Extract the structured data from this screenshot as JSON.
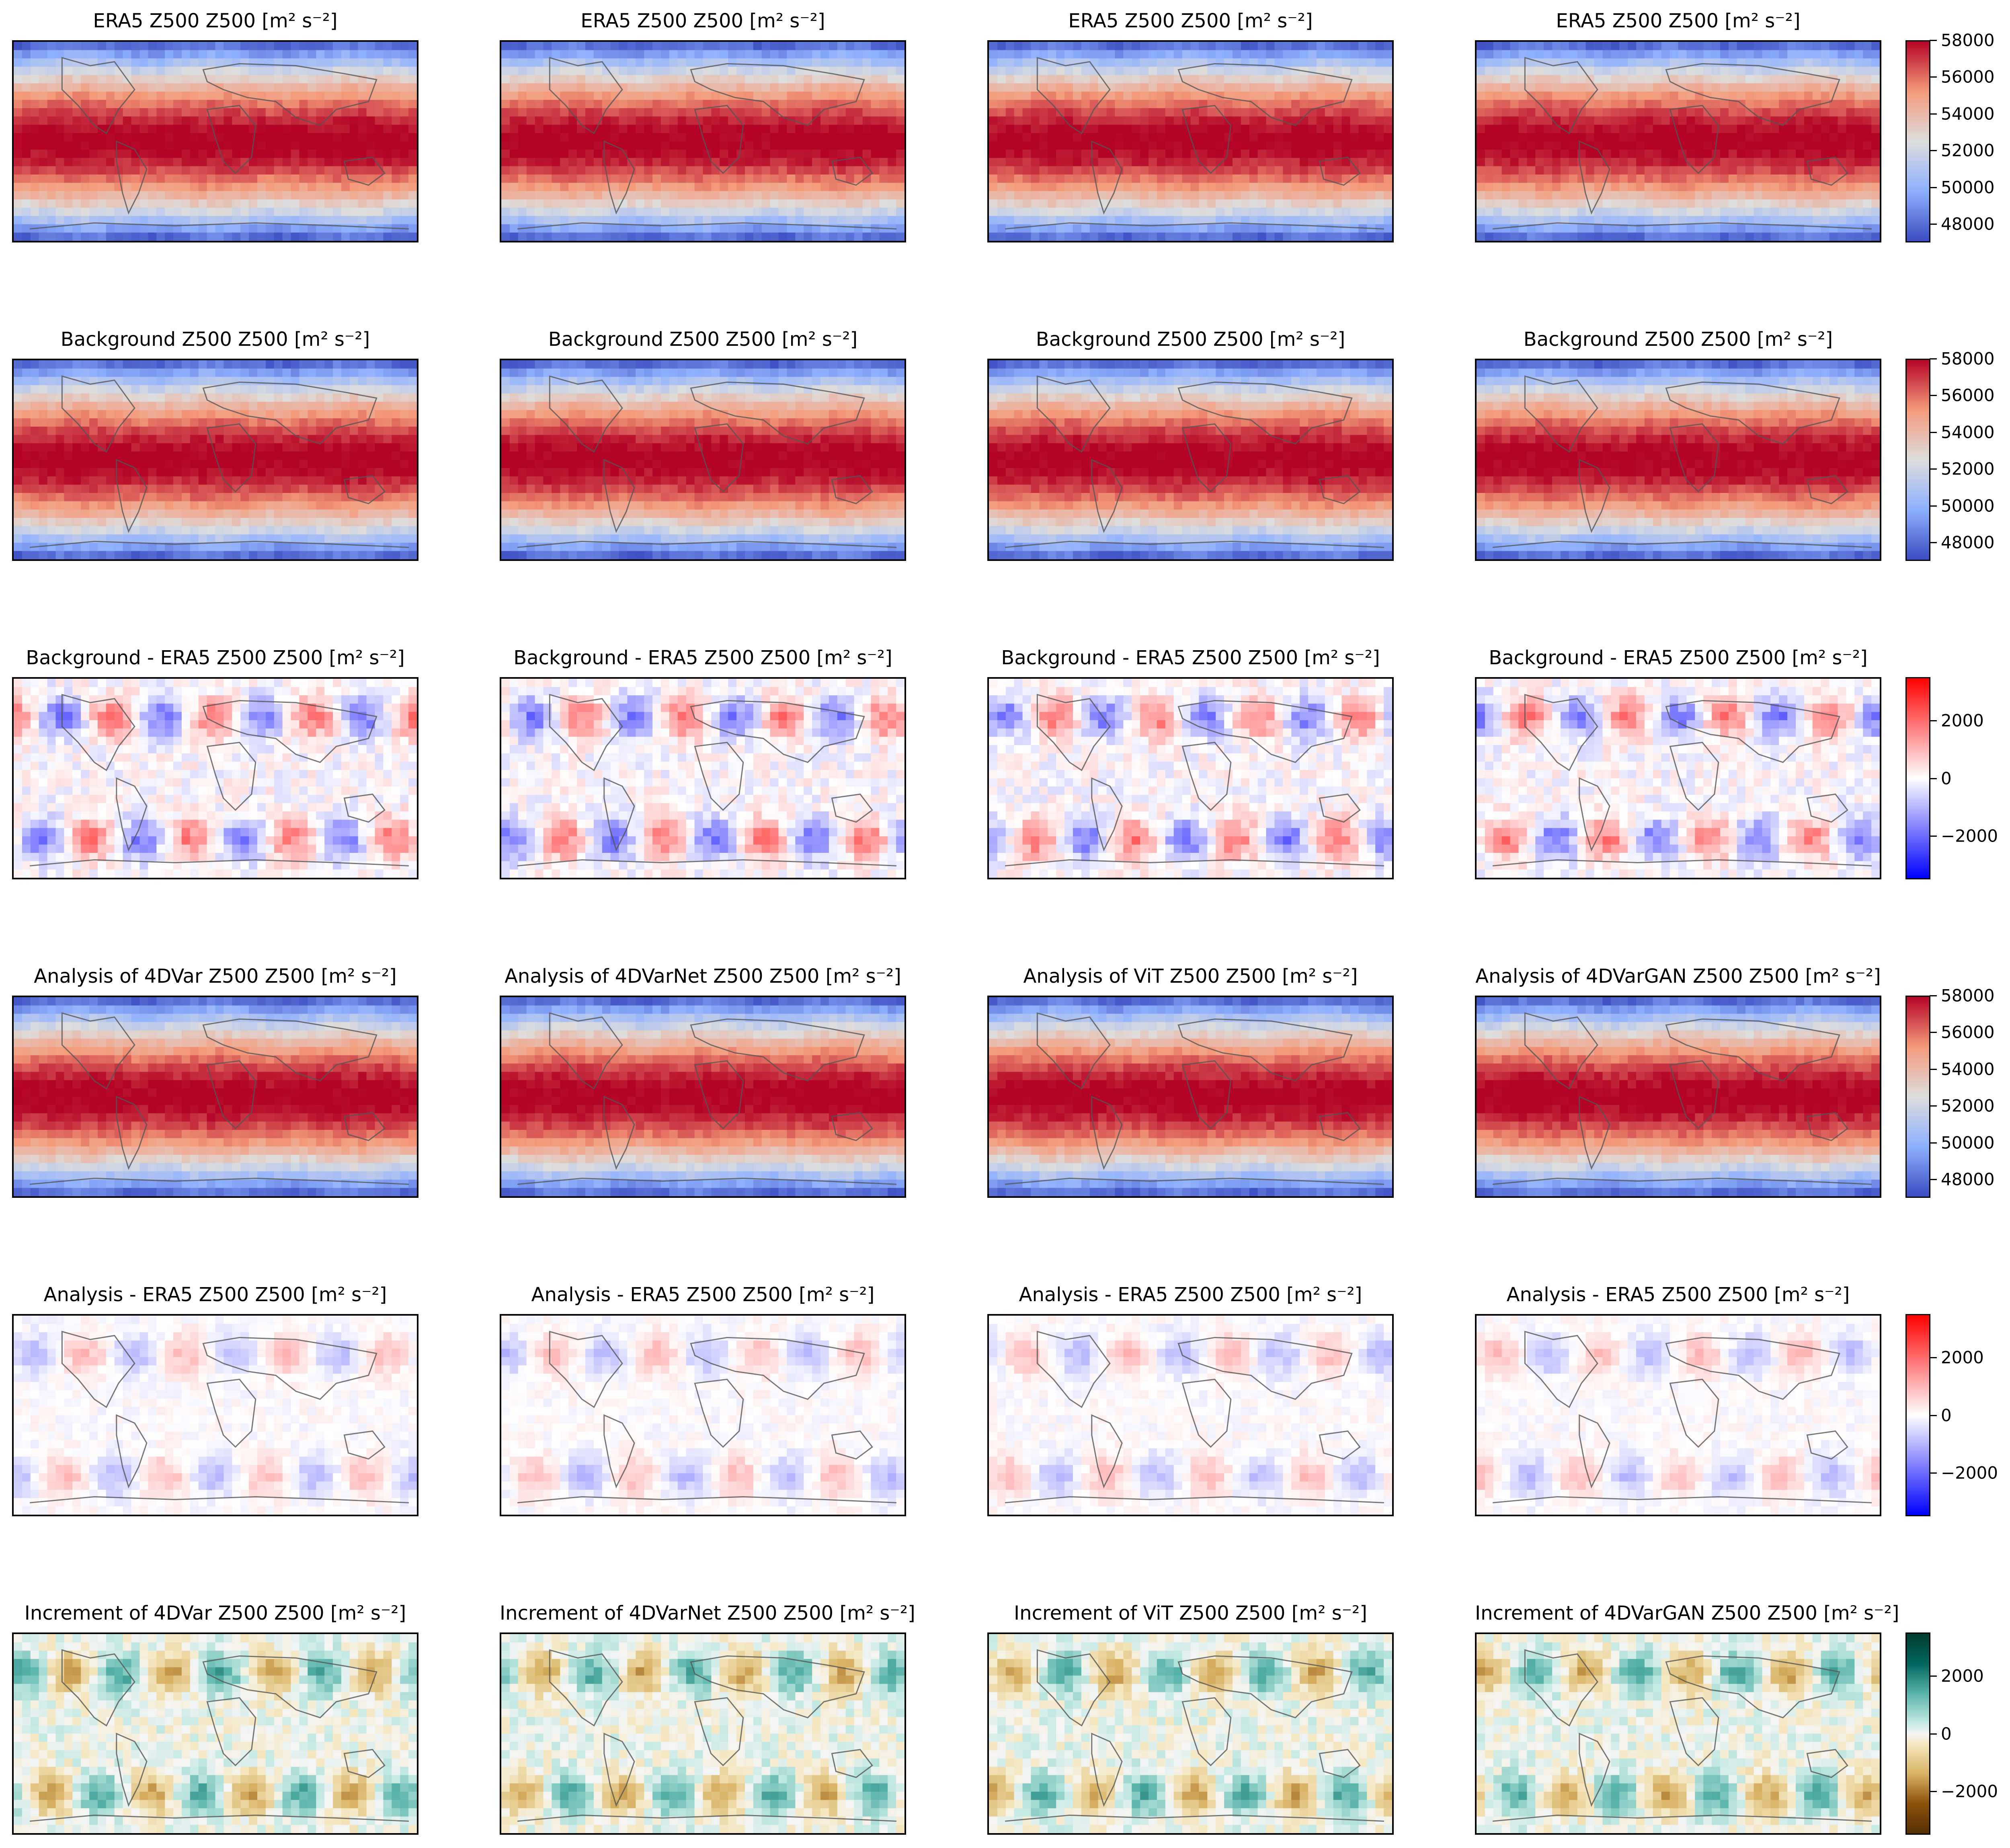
{
  "colors": {
    "abs": "coolwarm",
    "diff": "bwr",
    "increment": "BrBG"
  },
  "chart_data": [
    {
      "type": "heatmap",
      "row": 0,
      "col": 0,
      "title": "ERA5 Z500 Z500 [m² s⁻²]",
      "field": "absolute",
      "vmin": 47000,
      "vmax": 58000
    },
    {
      "type": "heatmap",
      "row": 0,
      "col": 1,
      "title": "ERA5 Z500 Z500 [m² s⁻²]",
      "field": "absolute",
      "vmin": 47000,
      "vmax": 58000
    },
    {
      "type": "heatmap",
      "row": 0,
      "col": 2,
      "title": "ERA5 Z500 Z500 [m² s⁻²]",
      "field": "absolute",
      "vmin": 47000,
      "vmax": 58000
    },
    {
      "type": "heatmap",
      "row": 0,
      "col": 3,
      "title": "ERA5 Z500 Z500 [m² s⁻²]",
      "field": "absolute",
      "vmin": 47000,
      "vmax": 58000
    },
    {
      "type": "heatmap",
      "row": 1,
      "col": 0,
      "title": "Background Z500 Z500 [m² s⁻²]",
      "field": "absolute",
      "vmin": 47000,
      "vmax": 58000
    },
    {
      "type": "heatmap",
      "row": 1,
      "col": 1,
      "title": "Background Z500 Z500 [m² s⁻²]",
      "field": "absolute",
      "vmin": 47000,
      "vmax": 58000
    },
    {
      "type": "heatmap",
      "row": 1,
      "col": 2,
      "title": "Background Z500 Z500 [m² s⁻²]",
      "field": "absolute",
      "vmin": 47000,
      "vmax": 58000
    },
    {
      "type": "heatmap",
      "row": 1,
      "col": 3,
      "title": "Background Z500 Z500 [m² s⁻²]",
      "field": "absolute",
      "vmin": 47000,
      "vmax": 58000
    },
    {
      "type": "heatmap",
      "row": 2,
      "col": 0,
      "title": "Background - ERA5 Z500 Z500 [m² s⁻²]",
      "field": "difference",
      "vmin": -3500,
      "vmax": 3500
    },
    {
      "type": "heatmap",
      "row": 2,
      "col": 1,
      "title": "Background - ERA5 Z500 Z500 [m² s⁻²]",
      "field": "difference",
      "vmin": -3500,
      "vmax": 3500
    },
    {
      "type": "heatmap",
      "row": 2,
      "col": 2,
      "title": "Background - ERA5 Z500 Z500 [m² s⁻²]",
      "field": "difference",
      "vmin": -3500,
      "vmax": 3500
    },
    {
      "type": "heatmap",
      "row": 2,
      "col": 3,
      "title": "Background - ERA5 Z500 Z500 [m² s⁻²]",
      "field": "difference",
      "vmin": -3500,
      "vmax": 3500
    },
    {
      "type": "heatmap",
      "row": 3,
      "col": 0,
      "title": "Analysis of 4DVar Z500 Z500 [m² s⁻²]",
      "field": "absolute",
      "vmin": 47000,
      "vmax": 58000
    },
    {
      "type": "heatmap",
      "row": 3,
      "col": 1,
      "title": "Analysis of 4DVarNet Z500 Z500 [m² s⁻²]",
      "field": "absolute",
      "vmin": 47000,
      "vmax": 58000
    },
    {
      "type": "heatmap",
      "row": 3,
      "col": 2,
      "title": "Analysis of ViT Z500 Z500 [m² s⁻²]",
      "field": "absolute",
      "vmin": 47000,
      "vmax": 58000
    },
    {
      "type": "heatmap",
      "row": 3,
      "col": 3,
      "title": "Analysis of 4DVarGAN Z500 Z500 [m² s⁻²]",
      "field": "absolute",
      "vmin": 47000,
      "vmax": 58000
    },
    {
      "type": "heatmap",
      "row": 4,
      "col": 0,
      "title": "Analysis - ERA5 Z500 Z500 [m² s⁻²]",
      "field": "difference",
      "vmin": -3500,
      "vmax": 3500
    },
    {
      "type": "heatmap",
      "row": 4,
      "col": 1,
      "title": "Analysis - ERA5 Z500 Z500 [m² s⁻²]",
      "field": "difference",
      "vmin": -3500,
      "vmax": 3500
    },
    {
      "type": "heatmap",
      "row": 4,
      "col": 2,
      "title": "Analysis - ERA5 Z500 Z500 [m² s⁻²]",
      "field": "difference",
      "vmin": -3500,
      "vmax": 3500
    },
    {
      "type": "heatmap",
      "row": 4,
      "col": 3,
      "title": "Analysis - ERA5 Z500 Z500 [m² s⁻²]",
      "field": "difference",
      "vmin": -3500,
      "vmax": 3500
    },
    {
      "type": "heatmap",
      "row": 5,
      "col": 0,
      "title": "Increment of 4DVar Z500 Z500 [m² s⁻²]",
      "field": "increment",
      "vmin": -3500,
      "vmax": 3500
    },
    {
      "type": "heatmap",
      "row": 5,
      "col": 1,
      "title": "Increment of 4DVarNet Z500 Z500 [m² s⁻²]",
      "field": "increment",
      "vmin": -3500,
      "vmax": 3500
    },
    {
      "type": "heatmap",
      "row": 5,
      "col": 2,
      "title": "Increment of ViT Z500 Z500 [m² s⁻²]",
      "field": "increment",
      "vmin": -3500,
      "vmax": 3500
    },
    {
      "type": "heatmap",
      "row": 5,
      "col": 3,
      "title": "Increment of 4DVarGAN Z500 Z500 [m² s⁻²]",
      "field": "increment",
      "vmin": -3500,
      "vmax": 3500
    }
  ],
  "colorbars": [
    {
      "row": 0,
      "cmap": "abs",
      "vmin": 47000,
      "vmax": 58000,
      "ticks": [
        48000,
        50000,
        52000,
        54000,
        56000,
        58000
      ],
      "tick_labels": [
        "48000",
        "50000",
        "52000",
        "54000",
        "56000",
        "58000"
      ]
    },
    {
      "row": 1,
      "cmap": "abs",
      "vmin": 47000,
      "vmax": 58000,
      "ticks": [
        48000,
        50000,
        52000,
        54000,
        56000,
        58000
      ],
      "tick_labels": [
        "48000",
        "50000",
        "52000",
        "54000",
        "56000",
        "58000"
      ]
    },
    {
      "row": 2,
      "cmap": "diff",
      "vmin": -3500,
      "vmax": 3500,
      "ticks": [
        -2000,
        0,
        2000
      ],
      "tick_labels": [
        "−2000",
        "0",
        "2000"
      ]
    },
    {
      "row": 3,
      "cmap": "abs",
      "vmin": 47000,
      "vmax": 58000,
      "ticks": [
        48000,
        50000,
        52000,
        54000,
        56000,
        58000
      ],
      "tick_labels": [
        "48000",
        "50000",
        "52000",
        "54000",
        "56000",
        "58000"
      ]
    },
    {
      "row": 4,
      "cmap": "diff",
      "vmin": -3500,
      "vmax": 3500,
      "ticks": [
        -2000,
        0,
        2000
      ],
      "tick_labels": [
        "−2000",
        "0",
        "2000"
      ]
    },
    {
      "row": 5,
      "cmap": "increment",
      "vmin": -3500,
      "vmax": 3500,
      "ticks": [
        -2000,
        0,
        2000
      ],
      "tick_labels": [
        "−2000",
        "0",
        "2000"
      ]
    }
  ]
}
